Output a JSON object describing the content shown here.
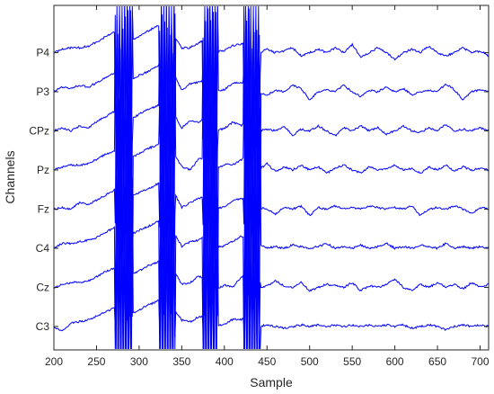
{
  "chart_data": {
    "type": "line",
    "title": "",
    "xlabel": "Sample",
    "ylabel": "Channels",
    "xlim": [
      200,
      710
    ],
    "xticks": [
      200,
      250,
      300,
      350,
      400,
      450,
      500,
      550,
      600,
      650,
      700
    ],
    "x_tick_labels": [
      "200",
      "250",
      "300",
      "350",
      "400",
      "450",
      "500",
      "550",
      "600",
      "650",
      "700"
    ],
    "y_tick_labels": [
      "C3",
      "Cz",
      "C4",
      "Fz",
      "Pz",
      "CPz",
      "P3",
      "P4"
    ],
    "grid": false,
    "legend": "none",
    "color": "#0000ff",
    "artifact_bursts": [
      {
        "start": 272,
        "end": 292,
        "peak": 283
      },
      {
        "start": 324,
        "end": 342,
        "peak": 333
      },
      {
        "start": 375,
        "end": 392,
        "peak": 384
      },
      {
        "start": 423,
        "end": 442,
        "peak": 432
      }
    ],
    "series": [
      {
        "channel": "C3",
        "x_step": 10,
        "x_start": 200,
        "values": [
          0.0,
          -0.3,
          0.2,
          0.3,
          0.4,
          0.5,
          0.5,
          0.6,
          0.7,
          0.8,
          0.9,
          1.0,
          1.0,
          1.1,
          1.2,
          0.3,
          0.0,
          0.1,
          0.0,
          0.1,
          0.0,
          0.1,
          -0.1,
          0.2,
          0.0,
          0.1,
          0.0,
          -0.1,
          0.0,
          0.1,
          0.0,
          0.1,
          0.0,
          0.1,
          0.0,
          0.1,
          0.0,
          0.1,
          0.0,
          0.1,
          0.0,
          0.1,
          -0.1,
          0.0,
          0.1,
          0.0,
          -0.2,
          0.0,
          0.1,
          0.0,
          0.1,
          0.0
        ]
      },
      {
        "channel": "Cz",
        "x_step": 10,
        "x_start": 200,
        "values": [
          0.0,
          0.2,
          0.3,
          0.3,
          0.4,
          0.5,
          0.6,
          0.6,
          0.7,
          0.8,
          0.9,
          1.0,
          1.0,
          1.1,
          1.2,
          0.1,
          0.0,
          0.2,
          -0.3,
          -0.1,
          0.0,
          -0.3,
          0.1,
          0.2,
          0.0,
          0.1,
          0.4,
          0.1,
          0.0,
          0.3,
          -0.2,
          0.0,
          0.2,
          0.1,
          0.0,
          0.3,
          -0.2,
          0.1,
          0.0,
          0.2,
          0.5,
          0.0,
          -0.2,
          0.2,
          0.0,
          0.3,
          0.0,
          0.2,
          -0.1,
          0.3,
          0.0,
          0.2
        ]
      },
      {
        "channel": "C4",
        "x_step": 10,
        "x_start": 200,
        "values": [
          0.0,
          0.3,
          0.3,
          0.4,
          0.5,
          0.5,
          0.6,
          0.7,
          0.8,
          0.9,
          1.0,
          1.0,
          1.1,
          1.2,
          1.2,
          0.0,
          0.1,
          0.0,
          0.3,
          0.1,
          0.0,
          0.1,
          0.2,
          -0.1,
          0.3,
          0.0,
          0.1,
          0.0,
          0.2,
          0.1,
          0.0,
          0.1,
          0.3,
          0.0,
          0.1,
          0.0,
          0.2,
          0.0,
          0.1,
          0.3,
          0.0,
          0.1,
          0.0,
          0.2,
          0.1,
          0.0,
          0.3,
          0.0,
          0.1,
          0.0,
          0.1,
          0.0
        ]
      },
      {
        "channel": "Fz",
        "x_step": 10,
        "x_start": 200,
        "values": [
          0.0,
          0.1,
          0.0,
          0.4,
          0.3,
          0.4,
          0.5,
          0.6,
          0.7,
          0.8,
          0.9,
          0.9,
          1.0,
          1.1,
          1.2,
          0.0,
          0.1,
          0.2,
          0.0,
          0.1,
          0.0,
          0.2,
          0.1,
          0.0,
          0.1,
          0.0,
          -0.3,
          0.1,
          0.0,
          0.2,
          -0.4,
          0.1,
          0.0,
          0.2,
          0.0,
          0.1,
          0.0,
          0.2,
          0.1,
          0.0,
          0.1,
          0.0,
          0.2,
          -0.4,
          0.0,
          0.1,
          0.0,
          0.2,
          0.0,
          -0.3,
          0.1,
          0.0
        ]
      },
      {
        "channel": "Pz",
        "x_step": 10,
        "x_start": 200,
        "values": [
          0.0,
          0.2,
          0.3,
          0.3,
          0.4,
          0.5,
          0.6,
          0.6,
          0.7,
          0.8,
          0.9,
          1.0,
          1.0,
          1.1,
          1.2,
          0.1,
          -0.3,
          0.2,
          0.0,
          0.1,
          0.2,
          0.0,
          0.1,
          0.3,
          0.0,
          0.4,
          -0.1,
          0.2,
          0.0,
          0.3,
          0.0,
          0.2,
          -0.2,
          0.1,
          0.3,
          0.0,
          -0.2,
          0.2,
          0.0,
          0.1,
          0.3,
          0.0,
          0.1,
          -0.2,
          0.2,
          0.0,
          0.3,
          -0.1,
          0.2,
          0.0,
          0.1,
          0.0
        ]
      },
      {
        "channel": "CPz",
        "x_step": 10,
        "x_start": 200,
        "values": [
          0.0,
          0.2,
          0.0,
          0.3,
          0.2,
          0.4,
          0.5,
          0.6,
          0.7,
          0.8,
          0.9,
          1.0,
          1.0,
          1.1,
          1.2,
          0.1,
          0.3,
          0.0,
          0.4,
          0.1,
          0.0,
          0.2,
          -0.2,
          0.3,
          0.0,
          0.1,
          0.0,
          0.3,
          -0.3,
          0.1,
          0.0,
          0.3,
          0.0,
          -0.3,
          0.2,
          0.0,
          0.3,
          0.0,
          0.2,
          -0.2,
          0.0,
          0.3,
          0.0,
          -0.1,
          0.2,
          0.0,
          0.4,
          0.0,
          0.1,
          0.0,
          0.2,
          0.0
        ]
      },
      {
        "channel": "P3",
        "x_step": 10,
        "x_start": 200,
        "values": [
          0.0,
          0.3,
          0.2,
          0.4,
          0.3,
          0.4,
          0.5,
          0.6,
          0.7,
          0.8,
          0.9,
          0.9,
          1.0,
          1.1,
          1.2,
          0.0,
          0.2,
          0.1,
          0.0,
          0.1,
          0.0,
          0.2,
          0.0,
          0.1,
          0.0,
          -0.2,
          0.1,
          0.0,
          0.4,
          0.2,
          -0.5,
          0.0,
          0.1,
          0.0,
          0.4,
          0.0,
          -0.3,
          0.1,
          0.0,
          0.3,
          0.0,
          0.2,
          -0.2,
          0.0,
          0.1,
          0.0,
          0.5,
          0.1,
          -0.5,
          0.0,
          0.1,
          0.0
        ]
      },
      {
        "channel": "P4",
        "x_step": 10,
        "x_start": 200,
        "values": [
          0.0,
          0.2,
          0.3,
          0.3,
          0.4,
          0.5,
          0.6,
          0.7,
          0.7,
          0.8,
          0.9,
          1.0,
          1.1,
          1.1,
          1.2,
          0.2,
          0.0,
          0.1,
          0.2,
          0.1,
          0.0,
          0.1,
          0.0,
          0.1,
          0.0,
          0.2,
          0.0,
          0.1,
          0.3,
          -0.2,
          0.0,
          0.2,
          0.0,
          0.3,
          0.0,
          0.5,
          -0.3,
          0.0,
          0.3,
          0.0,
          -0.4,
          0.0,
          0.2,
          0.0,
          0.4,
          0.0,
          -0.2,
          0.0,
          0.3,
          0.0,
          0.1,
          -0.2
        ]
      }
    ]
  }
}
